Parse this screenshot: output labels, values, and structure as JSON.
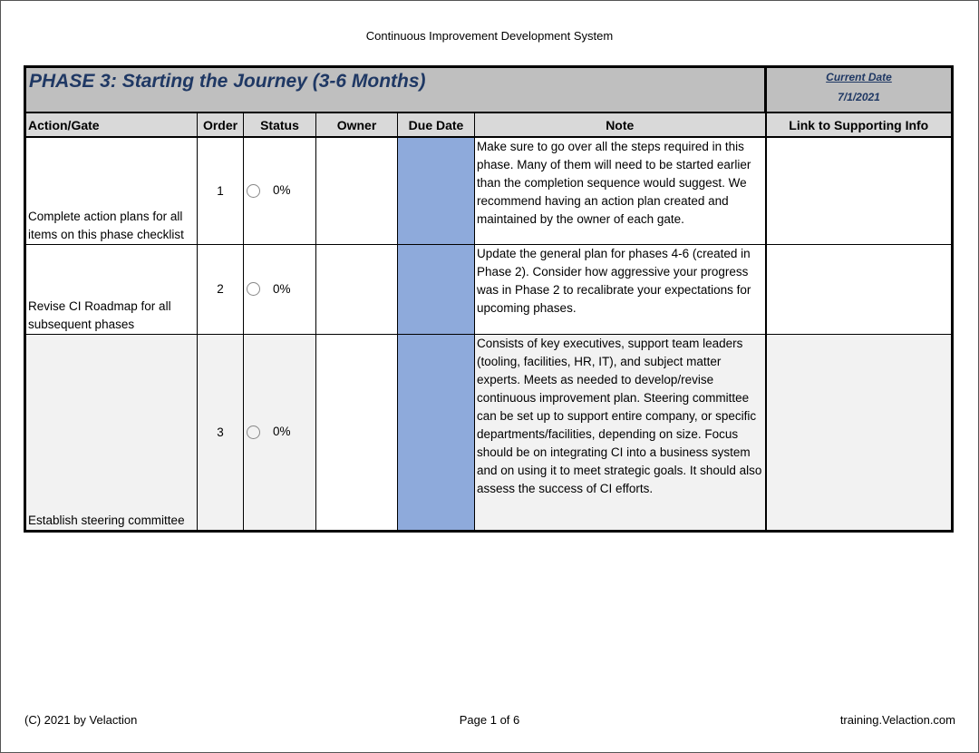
{
  "document_title": "Continuous Improvement Development System",
  "phase_title": "PHASE 3: Starting the Journey (3-6 Months)",
  "current_date": {
    "label": "Current Date",
    "value": "7/1/2021"
  },
  "columns": [
    "Action/Gate",
    "Order",
    "Status",
    "Owner",
    "Due Date",
    "Note",
    "Link to Supporting Info"
  ],
  "rows": [
    {
      "action": "Complete action plans for all items on this phase checklist",
      "order": "1",
      "status": "0%",
      "owner": "",
      "due": "",
      "note": "Make sure to go over all the steps required in this phase. Many of them will need to be started earlier than the completion sequence would suggest. We recommend having an action plan created and maintained by the owner of each gate.",
      "link": ""
    },
    {
      "action": "Revise CI Roadmap for all subsequent phases",
      "order": "2",
      "status": "0%",
      "owner": "",
      "due": "",
      "note": "Update the general plan for phases 4-6 (created in Phase 2). Consider how aggressive your progress was in Phase 2 to recalibrate your expectations for upcoming phases.",
      "link": ""
    },
    {
      "action": "Establish steering committee",
      "order": "3",
      "status": "0%",
      "owner": "",
      "due": "",
      "note": "Consists of key executives, support team leaders (tooling, facilities, HR, IT), and subject matter experts. Meets as needed to develop/revise continuous improvement plan. Steering committee can be set up to support entire company, or specific departments/facilities, depending on size. Focus should be on integrating CI into a business system and on using it to meet strategic goals. It should also assess the success of CI efforts.",
      "link": ""
    }
  ],
  "footer": {
    "copyright": "(C) 2021 by Velaction",
    "page": "Page 1 of 6",
    "website": "training.Velaction.com"
  },
  "colors": {
    "title_blue": "#1f3864",
    "due_date_fill": "#8eaadb",
    "header_gray": "#d9d9d9"
  }
}
